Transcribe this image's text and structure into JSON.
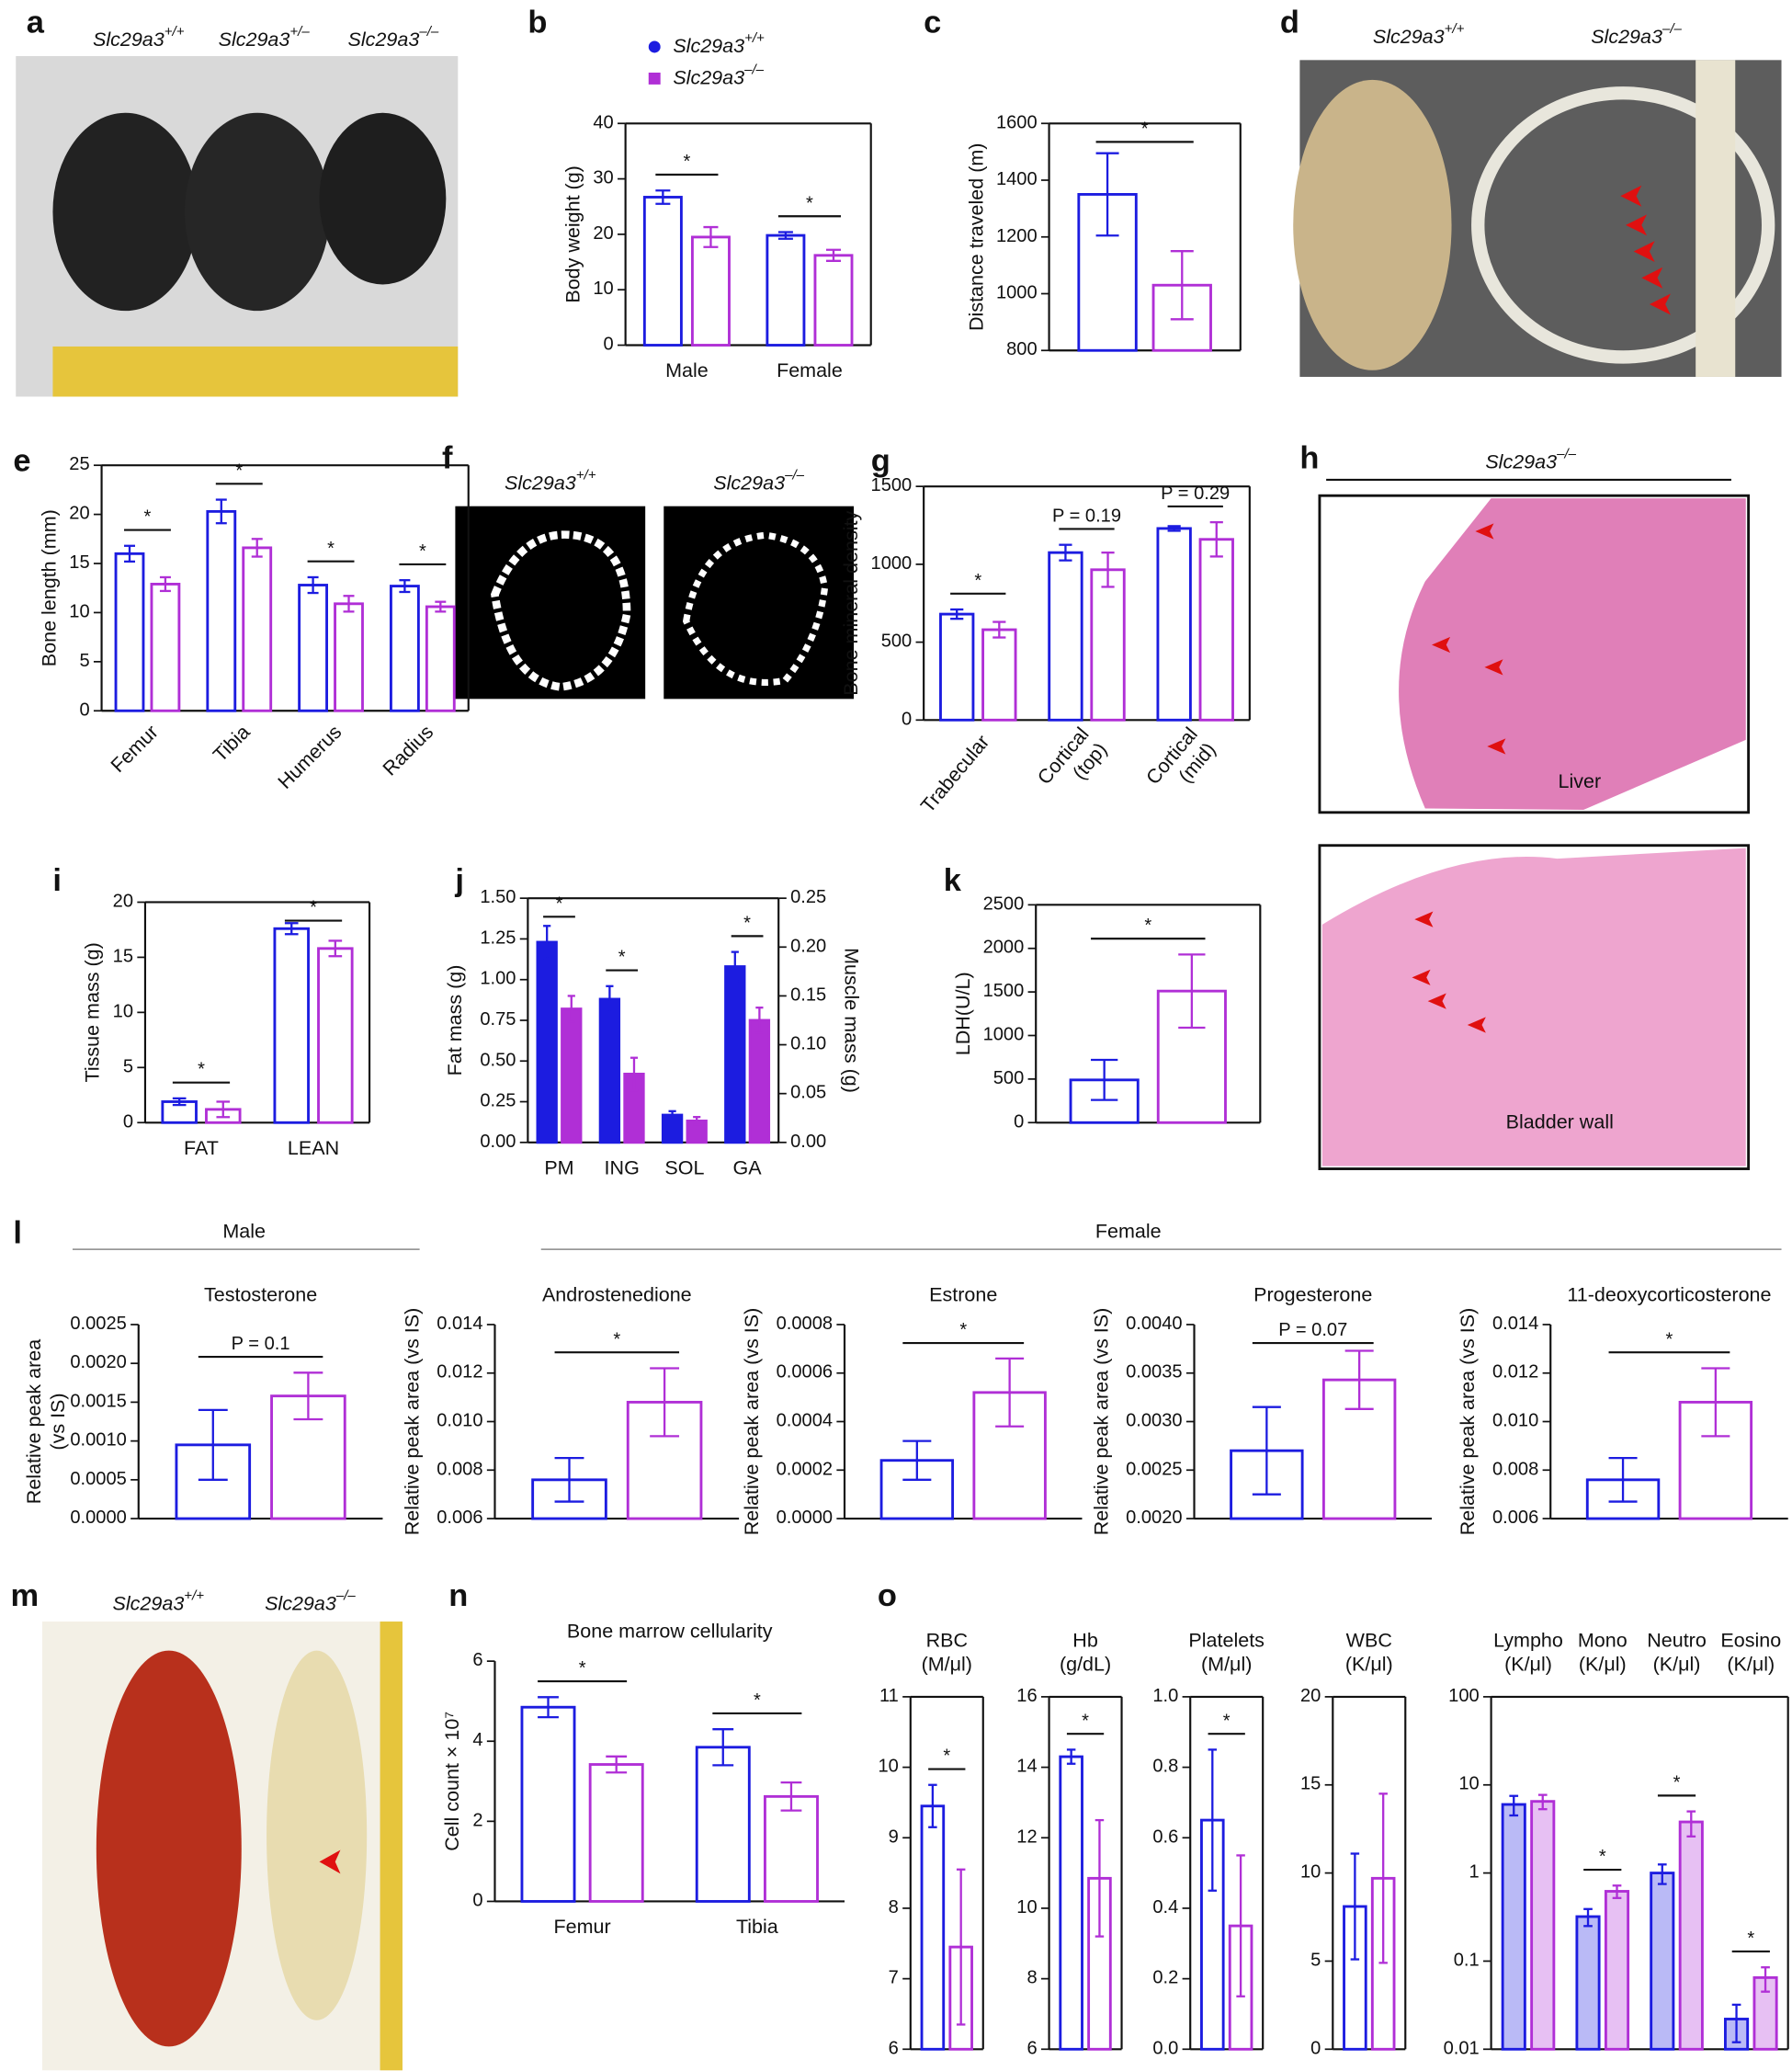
{
  "panel_letters": [
    "a",
    "b",
    "c",
    "d",
    "e",
    "f",
    "g",
    "h",
    "i",
    "j",
    "k",
    "l",
    "m",
    "n",
    "o"
  ],
  "photo_labels": {
    "a": [
      "Slc29a3+/+",
      "Slc29a3+/–",
      "Slc29a3–/–"
    ],
    "d": [
      "Slc29a3+/+",
      "Slc29a3–/–"
    ],
    "f": [
      "Slc29a3+/+",
      "Slc29a3–/–"
    ],
    "h": [
      "Slc29a3–/–"
    ],
    "m": [
      "Slc29a3+/+",
      "Slc29a3–/–"
    ]
  },
  "tissue_labels": [
    "Liver",
    "Bladder wall"
  ],
  "group_labels": [
    "Male",
    "Female"
  ],
  "chart_data": [
    {
      "type": "bar",
      "ylabel": "Body weight (g)",
      "categories": [
        "Male",
        "Female"
      ],
      "frame": true,
      "bar_style": "outline",
      "series": [
        {
          "name": "Slc29a3+/+",
          "color": "#1c1ce0",
          "values": [
            26.7,
            19.8
          ],
          "errors": [
            1.2,
            0.6
          ]
        },
        {
          "name": "Slc29a3–/–",
          "color": "#b02fd6",
          "values": [
            19.5,
            16.2
          ],
          "errors": [
            1.8,
            1.0
          ]
        }
      ],
      "ylim": [
        0,
        40
      ],
      "yticks": [
        0,
        10,
        20,
        30,
        40
      ],
      "annotations": [
        {
          "text": "*"
        },
        {
          "text": "*"
        }
      ]
    },
    {
      "type": "bar",
      "ylabel": "Distance traveled (m)",
      "categories": [
        null
      ],
      "frame": true,
      "bar_style": "outline",
      "series": [
        {
          "color": "#1c1ce0",
          "values": [
            1350
          ],
          "errors": [
            145
          ]
        },
        {
          "color": "#b02fd6",
          "values": [
            1030
          ],
          "errors": [
            120
          ]
        }
      ],
      "ylim": [
        800,
        1600
      ],
      "yticks": [
        800,
        1000,
        1200,
        1400,
        1600
      ],
      "annotations": [
        {
          "text": "*"
        }
      ]
    },
    {
      "type": "bar",
      "ylabel": "Bone length (mm)",
      "categories": [
        "Femur",
        "Tibia",
        "Humerus",
        "Radius"
      ],
      "frame": true,
      "bar_style": "outline",
      "xtick_rotation": -45,
      "series": [
        {
          "color": "#1c1ce0",
          "values": [
            16.0,
            20.3,
            12.8,
            12.7
          ],
          "errors": [
            0.8,
            1.2,
            0.8,
            0.6
          ]
        },
        {
          "color": "#b02fd6",
          "values": [
            12.9,
            16.6,
            10.9,
            10.6
          ],
          "errors": [
            0.7,
            0.9,
            0.8,
            0.5
          ]
        }
      ],
      "ylim": [
        0,
        25
      ],
      "yticks": [
        0,
        5,
        10,
        15,
        20,
        25
      ],
      "annotations": [
        {
          "text": "*"
        },
        {
          "text": "*"
        },
        {
          "text": "*"
        },
        {
          "text": "*"
        }
      ]
    },
    {
      "type": "bar",
      "ylabel": "Bone mineral density",
      "categories": [
        "Trabecular",
        "Cortical\n(top)",
        "Cortical\n(mid)"
      ],
      "frame": true,
      "bar_style": "outline",
      "xtick_rotation": -50,
      "series": [
        {
          "color": "#1c1ce0",
          "values": [
            680,
            1075,
            1230
          ],
          "errors": [
            30,
            50,
            15
          ]
        },
        {
          "color": "#b02fd6",
          "values": [
            580,
            965,
            1160
          ],
          "errors": [
            50,
            110,
            110
          ]
        }
      ],
      "ylim": [
        0,
        1500
      ],
      "yticks": [
        0,
        500,
        1000,
        1500
      ],
      "annotations": [
        {
          "text": "*"
        },
        {
          "text": "P = 0.19"
        },
        {
          "text": "P = 0.29"
        }
      ]
    },
    {
      "type": "bar",
      "ylabel": "Tissue mass (g)",
      "categories": [
        "FAT",
        "LEAN"
      ],
      "frame": true,
      "bar_style": "outline",
      "series": [
        {
          "color": "#1c1ce0",
          "values": [
            1.9,
            17.6
          ],
          "errors": [
            0.3,
            0.5
          ]
        },
        {
          "color": "#b02fd6",
          "values": [
            1.2,
            15.8
          ],
          "errors": [
            0.7,
            0.7
          ]
        }
      ],
      "ylim": [
        0,
        20
      ],
      "yticks": [
        0,
        5,
        10,
        15,
        20
      ],
      "annotations": [
        {
          "text": "*"
        },
        {
          "text": "*"
        }
      ]
    },
    {
      "type": "bar",
      "ylabel": "Fat mass (g)",
      "y2label": "Muscle mass (g)",
      "categories": [
        "PM",
        "ING",
        "SOL",
        "GA"
      ],
      "frame": true,
      "bar_style": "filled",
      "series": [
        {
          "color": "#1c1ce0",
          "values": [
            1.23,
            0.88,
            null,
            null
          ],
          "errors": [
            0.1,
            0.08,
            null,
            null
          ]
        },
        {
          "color": "#b02fd6",
          "values": [
            0.82,
            0.42,
            null,
            null
          ],
          "errors": [
            0.08,
            0.1,
            null,
            null
          ]
        },
        {
          "color": "#1c1ce0",
          "axis": "y2",
          "values": [
            null,
            null,
            0.028,
            0.18
          ],
          "errors": [
            null,
            null,
            0.004,
            0.015
          ]
        },
        {
          "color": "#b02fd6",
          "axis": "y2",
          "values": [
            null,
            null,
            0.022,
            0.125
          ],
          "errors": [
            null,
            null,
            0.004,
            0.013
          ]
        }
      ],
      "ylim": [
        0,
        1.5
      ],
      "yticks": [
        {
          "value": 0,
          "label": "0.00"
        },
        0.25,
        {
          "value": 0.5,
          "label": "0.50"
        },
        0.75,
        {
          "value": 1,
          "label": "1.00"
        },
        1.25,
        {
          "value": 1.5,
          "label": "1.50"
        }
      ],
      "y2lim": [
        0,
        0.25
      ],
      "y2ticks": [
        {
          "value": 0,
          "label": "0.00"
        },
        0.05,
        {
          "value": 0.1,
          "label": "0.10"
        },
        0.15,
        {
          "value": 0.2,
          "label": "0.20"
        },
        0.25
      ],
      "annotations": [
        {
          "text": "*"
        },
        {
          "text": "*"
        },
        null,
        {
          "text": "*"
        }
      ]
    },
    {
      "type": "bar",
      "ylabel": "LDH(U/L)",
      "categories": [
        null
      ],
      "frame": true,
      "bar_style": "outline",
      "series": [
        {
          "color": "#1c1ce0",
          "values": [
            490
          ],
          "errors": [
            230
          ]
        },
        {
          "color": "#b02fd6",
          "values": [
            1510
          ],
          "errors": [
            420
          ]
        }
      ],
      "ylim": [
        0,
        2500
      ],
      "yticks": [
        0,
        500,
        1000,
        1500,
        2000,
        2500
      ],
      "annotations": [
        {
          "text": "*"
        }
      ]
    },
    {
      "type": "bar",
      "title": "Testosterone",
      "ylabel": "Relative peak area\n(vs IS)",
      "categories": [
        null
      ],
      "frame": false,
      "bar_style": "outline",
      "series": [
        {
          "color": "#1c1ce0",
          "values": [
            0.00095
          ],
          "errors": [
            0.00045
          ]
        },
        {
          "color": "#b02fd6",
          "values": [
            0.00158
          ],
          "errors": [
            0.0003
          ]
        }
      ],
      "ylim": [
        0,
        0.0025
      ],
      "yticks": [
        {
          "value": 0,
          "label": "0.0000"
        },
        0.0005,
        {
          "value": 0.001,
          "label": "0.0010"
        },
        0.0015,
        {
          "value": 0.002,
          "label": "0.0020"
        },
        0.0025
      ],
      "annotations": [
        {
          "text": "P = 0.1"
        }
      ]
    },
    {
      "type": "bar",
      "title": "Androstenedione",
      "ylabel": "Relative peak area (vs IS)",
      "categories": [
        null
      ],
      "frame": false,
      "bar_style": "outline",
      "series": [
        {
          "color": "#1c1ce0",
          "values": [
            0.0076
          ],
          "errors": [
            0.0009
          ]
        },
        {
          "color": "#b02fd6",
          "values": [
            0.0108
          ],
          "errors": [
            0.0014
          ]
        }
      ],
      "ylim": [
        0.006,
        0.014
      ],
      "yticks": [
        0.006,
        0.008,
        {
          "value": 0.01,
          "label": "0.010"
        },
        0.012,
        0.014
      ],
      "annotations": [
        {
          "text": "*"
        }
      ]
    },
    {
      "type": "bar",
      "title": "Estrone",
      "ylabel": "Relative peak area (vs IS)",
      "categories": [
        null
      ],
      "frame": false,
      "bar_style": "outline",
      "series": [
        {
          "color": "#1c1ce0",
          "values": [
            0.00024
          ],
          "errors": [
            8e-05
          ]
        },
        {
          "color": "#b02fd6",
          "values": [
            0.00052
          ],
          "errors": [
            0.00014
          ]
        }
      ],
      "ylim": [
        0,
        0.0008
      ],
      "yticks": [
        {
          "value": 0,
          "label": "0.0000"
        },
        0.0002,
        0.0004,
        0.0006,
        0.0008
      ],
      "annotations": [
        {
          "text": "*"
        }
      ]
    },
    {
      "type": "bar",
      "title": "Progesterone",
      "ylabel": "Relative peak area (vs IS)",
      "categories": [
        null
      ],
      "frame": false,
      "bar_style": "outline",
      "series": [
        {
          "color": "#1c1ce0",
          "values": [
            0.0027
          ],
          "errors": [
            0.00045
          ]
        },
        {
          "color": "#b02fd6",
          "values": [
            0.00343
          ],
          "errors": [
            0.0003
          ]
        }
      ],
      "ylim": [
        0.002,
        0.004
      ],
      "yticks": [
        {
          "value": 0.002,
          "label": "0.0020"
        },
        0.0025,
        {
          "value": 0.003,
          "label": "0.0030"
        },
        0.0035,
        {
          "value": 0.004,
          "label": "0.0040"
        }
      ],
      "annotations": [
        {
          "text": "P = 0.07"
        }
      ]
    },
    {
      "type": "bar",
      "title": "11-deoxycorticosterone",
      "ylabel": "Relative peak area (vs IS)",
      "categories": [
        null
      ],
      "frame": false,
      "bar_style": "outline",
      "series": [
        {
          "color": "#1c1ce0",
          "values": [
            0.0076
          ],
          "errors": [
            0.0009
          ]
        },
        {
          "color": "#b02fd6",
          "values": [
            0.0108
          ],
          "errors": [
            0.0014
          ]
        }
      ],
      "ylim": [
        0.006,
        0.014
      ],
      "yticks": [
        0.006,
        0.008,
        {
          "value": 0.01,
          "label": "0.010"
        },
        0.012,
        0.014
      ],
      "annotations": [
        {
          "text": "*"
        }
      ]
    },
    {
      "type": "bar",
      "title": "Bone marrow cellularity",
      "ylabel": "Cell count × 10⁷",
      "categories": [
        "Femur",
        "Tibia"
      ],
      "frame": false,
      "bar_style": "outline",
      "series": [
        {
          "color": "#1c1ce0",
          "values": [
            4.85,
            3.85
          ],
          "errors": [
            0.25,
            0.45
          ]
        },
        {
          "color": "#b02fd6",
          "values": [
            3.42,
            2.62
          ],
          "errors": [
            0.2,
            0.35
          ]
        }
      ],
      "ylim": [
        0,
        6
      ],
      "yticks": [
        0,
        2,
        4,
        6
      ],
      "annotations": [
        {
          "text": "*"
        },
        {
          "text": "*"
        }
      ]
    },
    {
      "type": "bar",
      "title": "RBC\n(M/μl)",
      "categories": [
        null
      ],
      "frame": true,
      "bar_style": "outline",
      "series": [
        {
          "color": "#1c1ce0",
          "values": [
            9.45
          ],
          "errors": [
            0.3
          ]
        },
        {
          "color": "#b02fd6",
          "values": [
            7.45
          ],
          "errors": [
            1.1
          ]
        }
      ],
      "ylim": [
        6,
        11
      ],
      "yticks": [
        6,
        7,
        8,
        9,
        10,
        11
      ],
      "annotations": [
        {
          "text": "*"
        }
      ]
    },
    {
      "type": "bar",
      "title": "Hb\n(g/dL)",
      "categories": [
        null
      ],
      "frame": true,
      "bar_style": "outline",
      "series": [
        {
          "color": "#1c1ce0",
          "values": [
            14.3
          ],
          "errors": [
            0.2
          ]
        },
        {
          "color": "#b02fd6",
          "values": [
            10.85
          ],
          "errors": [
            1.65
          ]
        }
      ],
      "ylim": [
        6,
        16
      ],
      "yticks": [
        6,
        8,
        10,
        12,
        14,
        16
      ],
      "annotations": [
        {
          "text": "*"
        }
      ]
    },
    {
      "type": "bar",
      "title": "Platelets\n(M/μl)",
      "categories": [
        null
      ],
      "frame": true,
      "bar_style": "outline",
      "series": [
        {
          "color": "#1c1ce0",
          "values": [
            0.65
          ],
          "errors": [
            0.2
          ]
        },
        {
          "color": "#b02fd6",
          "values": [
            0.35
          ],
          "errors": [
            0.2
          ]
        }
      ],
      "ylim": [
        0,
        1
      ],
      "yticks": [
        {
          "value": 0,
          "label": "0.0"
        },
        0.2,
        0.4,
        0.6,
        0.8,
        {
          "value": 1,
          "label": "1.0"
        }
      ],
      "annotations": [
        {
          "text": "*"
        }
      ]
    },
    {
      "type": "bar",
      "title": "WBC\n(K/μl)",
      "categories": [
        null
      ],
      "frame": true,
      "bar_style": "outline",
      "series": [
        {
          "color": "#1c1ce0",
          "values": [
            8.1
          ],
          "errors": [
            3.0
          ]
        },
        {
          "color": "#b02fd6",
          "values": [
            9.7
          ],
          "errors": [
            4.8
          ]
        }
      ],
      "ylim": [
        0,
        20
      ],
      "yticks": [
        0,
        5,
        10,
        15,
        20
      ]
    },
    {
      "type": "bar",
      "title": "Lympho\n(K/μl)",
      "categories": [
        null,
        null,
        null,
        null
      ],
      "category_titles": [
        "Lympho\n(K/μl)",
        "Mono\n(K/μl)",
        "Neutro\n(K/μl)",
        "Eosino\n(K/μl)"
      ],
      "frame": true,
      "bar_style": "tint",
      "log_scale": true,
      "series": [
        {
          "color": "#1c1ce0",
          "values": [
            6.0,
            0.32,
            1.0,
            0.022
          ],
          "errors": [
            1.5,
            0.07,
            0.25,
            0.01
          ]
        },
        {
          "color": "#b02fd6",
          "values": [
            6.5,
            0.62,
            3.8,
            0.065
          ],
          "errors": [
            1.2,
            0.1,
            1.2,
            0.02
          ]
        }
      ],
      "ylim": [
        0.01,
        100
      ],
      "yticks": [
        0.01,
        0.1,
        1,
        10,
        100
      ],
      "annotations": [
        null,
        {
          "text": "*"
        },
        {
          "text": "*"
        },
        {
          "text": "*"
        }
      ]
    }
  ]
}
